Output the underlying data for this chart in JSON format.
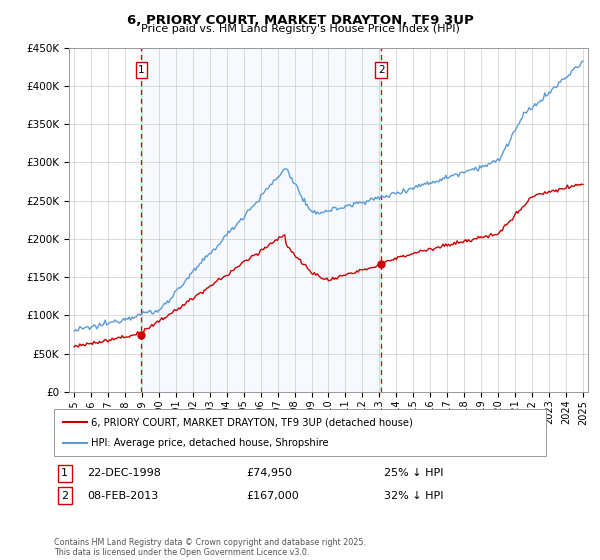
{
  "title": "6, PRIORY COURT, MARKET DRAYTON, TF9 3UP",
  "subtitle": "Price paid vs. HM Land Registry's House Price Index (HPI)",
  "sale1_date": "22-DEC-1998",
  "sale1_price": 74950,
  "sale1_label": "25% ↓ HPI",
  "sale1_x": 1998.97,
  "sale2_date": "08-FEB-2013",
  "sale2_price": 167000,
  "sale2_label": "32% ↓ HPI",
  "sale2_x": 2013.11,
  "legend1": "6, PRIORY COURT, MARKET DRAYTON, TF9 3UP (detached house)",
  "legend2": "HPI: Average price, detached house, Shropshire",
  "footnote": "Contains HM Land Registry data © Crown copyright and database right 2025.\nThis data is licensed under the Open Government Licence v3.0.",
  "hpi_color": "#5b9bd5",
  "price_color": "#cc0000",
  "vline_color": "#cc0000",
  "shade_color": "#ddeeff",
  "bg_color": "#ffffff",
  "grid_color": "#cccccc",
  "ylim": [
    0,
    450000
  ],
  "xlim": [
    1994.7,
    2025.3
  ]
}
